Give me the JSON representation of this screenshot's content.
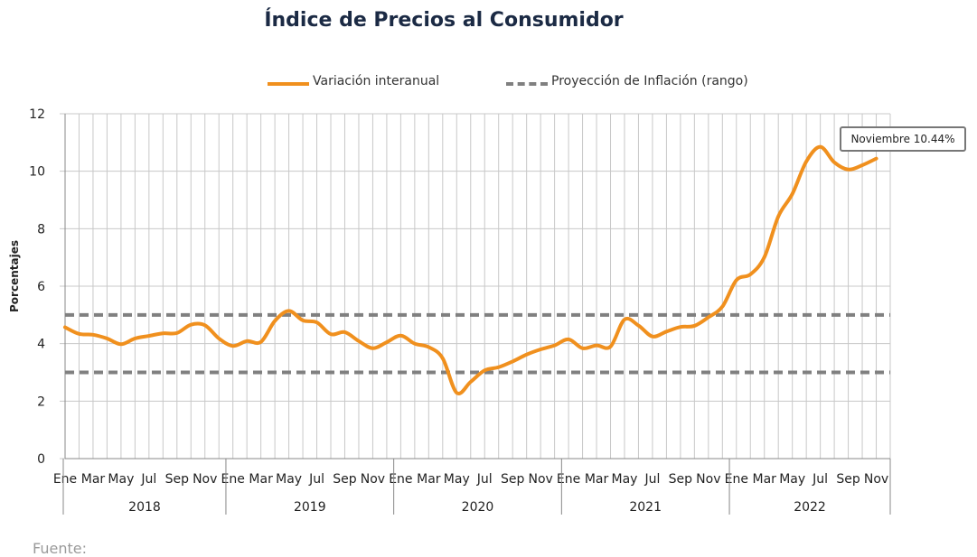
{
  "title": "Índice de Precios al Consumidor",
  "footer": "Fuente:",
  "callout": {
    "text": "Noviembre 10.44%"
  },
  "colors": {
    "series": "#f0901e",
    "projection": "#808080",
    "grid": "#c8c8c8",
    "title": "#1b2a44"
  },
  "chart_data": {
    "type": "line",
    "title": "Índice de Precios al Consumidor",
    "ylabel": "Porcentajes",
    "xlabel": "",
    "ylim": [
      0,
      12
    ],
    "yticks": [
      0,
      2,
      4,
      6,
      8,
      10,
      12
    ],
    "grid": true,
    "legend_position": "top",
    "years": [
      "2018",
      "2019",
      "2020",
      "2021",
      "2022"
    ],
    "month_tick_labels": [
      "Ene",
      "Mar",
      "May",
      "Jul",
      "Sep",
      "Nov"
    ],
    "x": [
      "2018-01",
      "2018-02",
      "2018-03",
      "2018-04",
      "2018-05",
      "2018-06",
      "2018-07",
      "2018-08",
      "2018-09",
      "2018-10",
      "2018-11",
      "2018-12",
      "2019-01",
      "2019-02",
      "2019-03",
      "2019-04",
      "2019-05",
      "2019-06",
      "2019-07",
      "2019-08",
      "2019-09",
      "2019-10",
      "2019-11",
      "2019-12",
      "2020-01",
      "2020-02",
      "2020-03",
      "2020-04",
      "2020-05",
      "2020-06",
      "2020-07",
      "2020-08",
      "2020-09",
      "2020-10",
      "2020-11",
      "2020-12",
      "2021-01",
      "2021-02",
      "2021-03",
      "2021-04",
      "2021-05",
      "2021-06",
      "2021-07",
      "2021-08",
      "2021-09",
      "2021-10",
      "2021-11",
      "2021-12",
      "2022-01",
      "2022-02",
      "2022-03",
      "2022-04",
      "2022-05",
      "2022-06",
      "2022-07",
      "2022-08",
      "2022-09",
      "2022-10",
      "2022-11"
    ],
    "series": [
      {
        "name": "Variación interanual",
        "style": "solid",
        "values": [
          4.57,
          4.34,
          4.31,
          4.18,
          3.98,
          4.18,
          4.27,
          4.36,
          4.37,
          4.66,
          4.64,
          4.18,
          3.92,
          4.09,
          4.06,
          4.79,
          5.14,
          4.81,
          4.74,
          4.33,
          4.4,
          4.09,
          3.84,
          4.05,
          4.28,
          4.0,
          3.88,
          3.49,
          2.29,
          2.67,
          3.07,
          3.18,
          3.38,
          3.62,
          3.8,
          3.94,
          4.15,
          3.84,
          3.94,
          3.9,
          4.84,
          4.63,
          4.25,
          4.42,
          4.58,
          4.62,
          4.92,
          5.29,
          6.21,
          6.41,
          7.01,
          8.43,
          9.21,
          10.34,
          10.85,
          10.31,
          10.06,
          10.21,
          10.44
        ]
      },
      {
        "name": "Proyección de Inflación (rango)",
        "style": "dashed",
        "band": [
          3,
          5
        ]
      }
    ]
  }
}
